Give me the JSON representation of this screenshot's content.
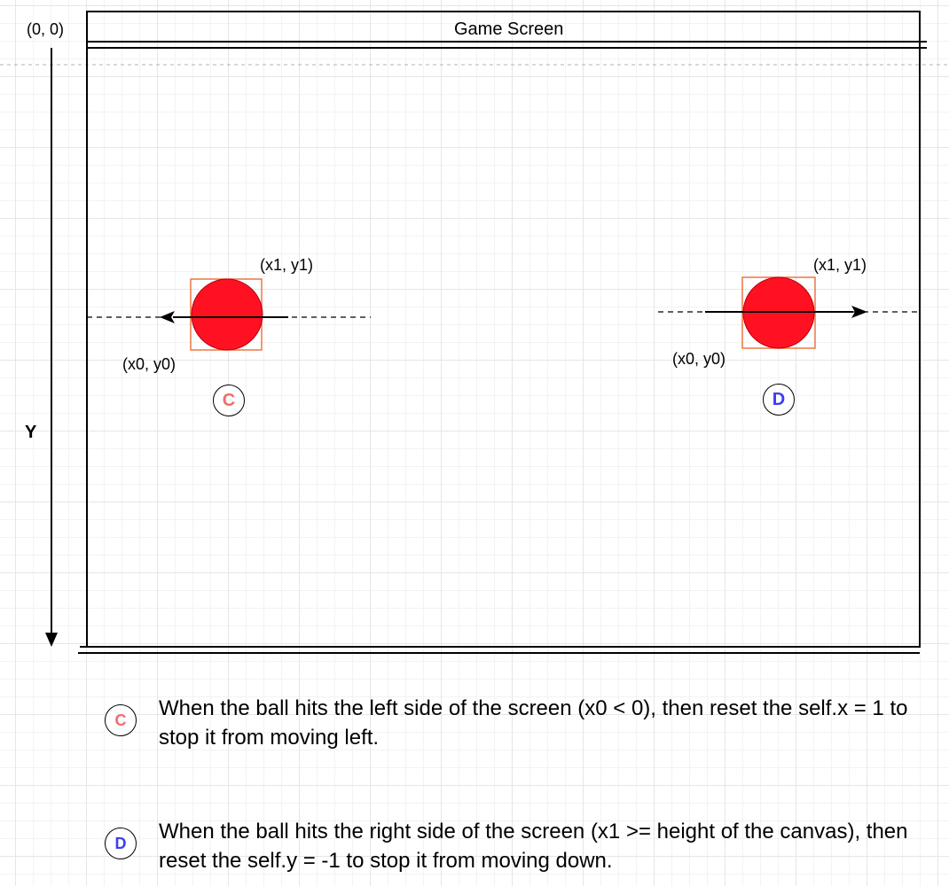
{
  "origin_label": "(0, 0)",
  "screen_title": "Game Screen",
  "y_axis_label": "Y",
  "ball_left": {
    "x1y1_label": "(x1, y1)",
    "x0y0_label": "(x0, y0)",
    "badge": "C",
    "badge_color": "#f36b6b"
  },
  "ball_right": {
    "x1y1_label": "(x1, y1)",
    "x0y0_label": "(x0, y0)",
    "badge": "D",
    "badge_color": "#3d3df2"
  },
  "ball_color": "#ff1122",
  "box_color": "#ee7744",
  "notes": [
    {
      "badge": "C",
      "text": "When the ball hits the left side of the screen (x0 < 0), then reset the self.x = 1 to stop it from moving left."
    },
    {
      "badge": "D",
      "text": "When the ball hits the right side of the screen (x1 >= height of the canvas), then reset the self.y = -1 to stop it from moving down."
    }
  ]
}
